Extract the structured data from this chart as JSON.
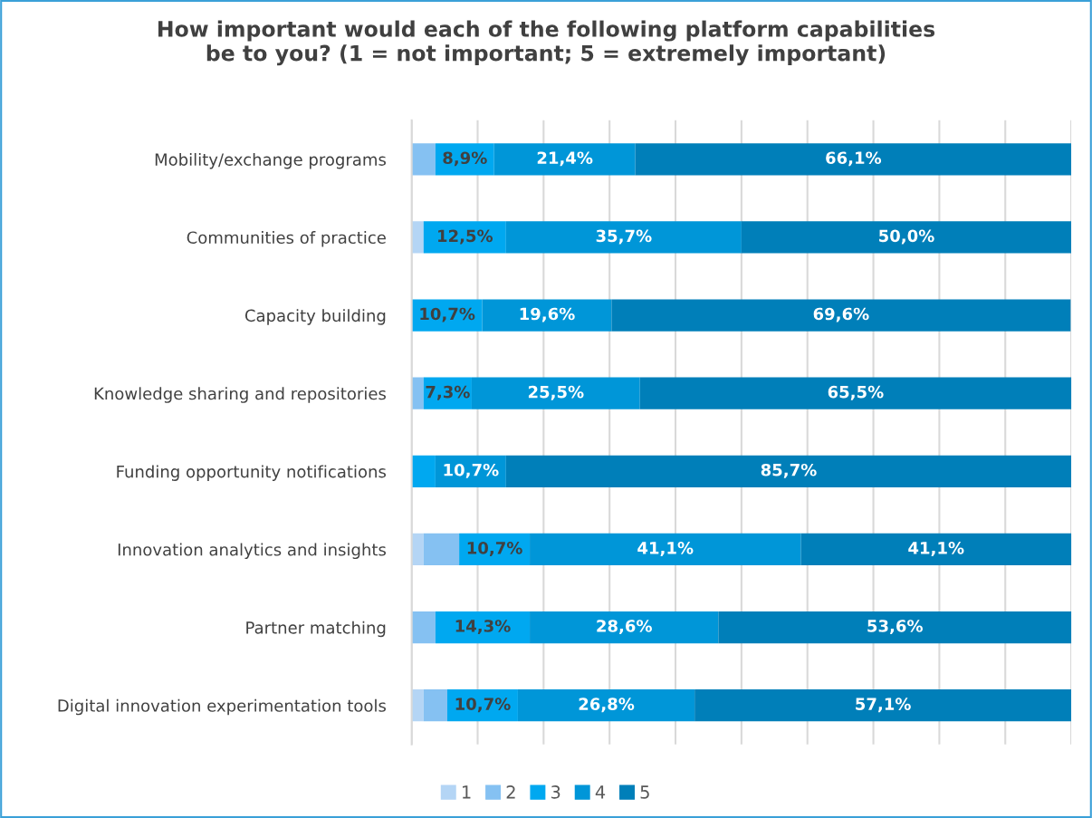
{
  "chart_data": {
    "type": "bar",
    "orientation": "horizontal",
    "stacked": true,
    "title": "How important would each of the following platform capabilities\nbe to you? (1 = not important; 5 = extremely important)",
    "categories": [
      "Mobility/exchange programs",
      "Communities of practice",
      "Capacity building",
      "Knowledge sharing and repositories",
      "Funding opportunity notifications",
      "Innovation analytics and insights",
      "Partner matching",
      "Digital innovation experimentation tools"
    ],
    "series": [
      {
        "name": "1",
        "color": "#b4d5f5",
        "values": [
          null,
          1.8,
          null,
          null,
          null,
          1.8,
          null,
          1.8
        ],
        "value_labels": [
          null,
          null,
          null,
          null,
          null,
          null,
          null,
          null
        ]
      },
      {
        "name": "2",
        "color": "#85c1f2",
        "values": [
          3.6,
          null,
          null,
          1.8,
          null,
          5.4,
          3.6,
          3.6
        ],
        "value_labels": [
          null,
          null,
          null,
          null,
          null,
          null,
          null,
          null
        ]
      },
      {
        "name": "3",
        "color": "#00a8f0",
        "values": [
          8.9,
          12.5,
          10.7,
          7.3,
          3.6,
          10.7,
          14.3,
          10.7
        ],
        "value_labels": [
          "8,9%",
          "12,5%",
          "10,7%",
          "7,3%",
          null,
          "10,7%",
          "14,3%",
          "10,7%"
        ]
      },
      {
        "name": "4",
        "color": "#0096d8",
        "values": [
          21.4,
          35.7,
          19.6,
          25.5,
          10.7,
          41.1,
          28.6,
          26.8
        ],
        "value_labels": [
          "21,4%",
          "35,7%",
          "19,6%",
          "25,5%",
          "10,7%",
          "41,1%",
          "28,6%",
          "26,8%"
        ]
      },
      {
        "name": "5",
        "color": "#007fb9",
        "values": [
          66.1,
          50.0,
          69.6,
          65.5,
          85.7,
          41.1,
          53.6,
          57.1
        ],
        "value_labels": [
          "66,1%",
          "50,0%",
          "69,6%",
          "65,5%",
          "85,7%",
          "41,1%",
          "53,6%",
          "57,1%"
        ]
      }
    ],
    "xlim": [
      0,
      100
    ],
    "xticks": [
      {
        "value": 0,
        "label": null
      },
      {
        "value": 10,
        "label": null
      },
      {
        "value": 20,
        "label": null
      },
      {
        "value": 30,
        "label": null
      },
      {
        "value": 40,
        "label": null
      },
      {
        "value": 50,
        "label": null
      },
      {
        "value": 60,
        "label": null
      },
      {
        "value": 70,
        "label": null
      },
      {
        "value": 80,
        "label": null
      },
      {
        "value": 90,
        "label": null
      },
      {
        "value": 100,
        "label": null
      }
    ],
    "tick_labels": "y",
    "grid": "x",
    "legend": "bottom"
  }
}
